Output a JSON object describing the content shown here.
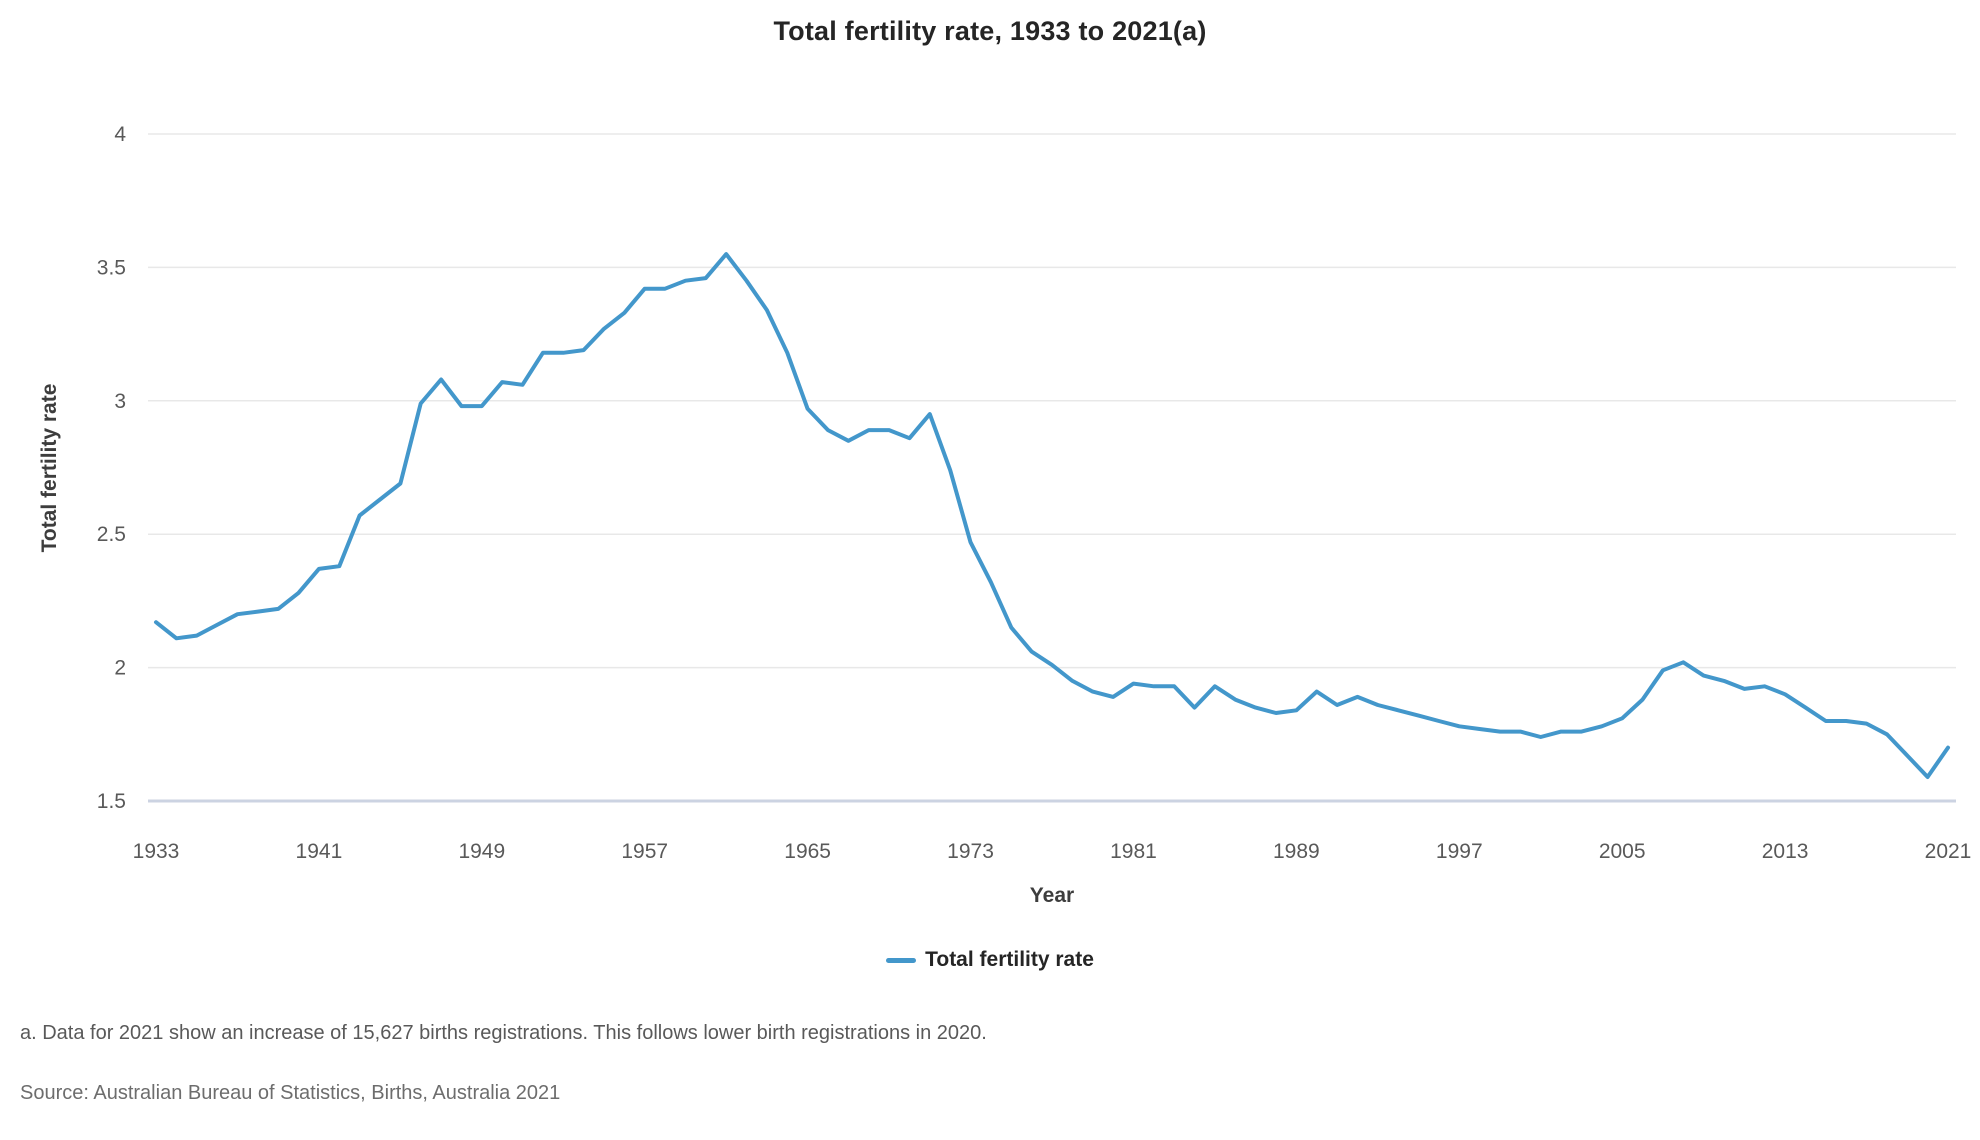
{
  "title": "Total fertility rate, 1933 to 2021(a)",
  "footnote": "a. Data for 2021 show an increase of 15,627 births registrations. This follows lower birth registrations in 2020.",
  "source": "Source: Australian Bureau of Statistics, Births, Australia 2021",
  "legend": {
    "label": "Total fertility rate"
  },
  "chart_data": {
    "type": "line",
    "title": "Total fertility rate, 1933 to 2021(a)",
    "xlabel": "Year",
    "ylabel": "Total fertility rate",
    "xlim": [
      1933,
      2021
    ],
    "ylim": [
      1.5,
      4
    ],
    "x_ticks": [
      1933,
      1941,
      1949,
      1957,
      1965,
      1973,
      1981,
      1989,
      1997,
      2005,
      2013,
      2021
    ],
    "y_ticks": [
      4,
      3.5,
      3,
      2.5,
      2,
      1.5
    ],
    "grid": "horizontal gridlines only, light gray; baseline at 1.5 pale blue-gray",
    "legend_position": "bottom center",
    "years": [
      1933,
      1934,
      1935,
      1936,
      1937,
      1938,
      1939,
      1940,
      1941,
      1942,
      1943,
      1944,
      1945,
      1946,
      1947,
      1948,
      1949,
      1950,
      1951,
      1952,
      1953,
      1954,
      1955,
      1956,
      1957,
      1958,
      1959,
      1960,
      1961,
      1962,
      1963,
      1964,
      1965,
      1966,
      1967,
      1968,
      1969,
      1970,
      1971,
      1972,
      1973,
      1974,
      1975,
      1976,
      1977,
      1978,
      1979,
      1980,
      1981,
      1982,
      1983,
      1984,
      1985,
      1986,
      1987,
      1988,
      1989,
      1990,
      1991,
      1992,
      1993,
      1994,
      1995,
      1996,
      1997,
      1998,
      1999,
      2000,
      2001,
      2002,
      2003,
      2004,
      2005,
      2006,
      2007,
      2008,
      2009,
      2010,
      2011,
      2012,
      2013,
      2014,
      2015,
      2016,
      2017,
      2018,
      2019,
      2020,
      2021
    ],
    "series": [
      {
        "name": "Total fertility rate",
        "values": [
          2.17,
          2.11,
          2.12,
          2.16,
          2.2,
          2.21,
          2.22,
          2.28,
          2.37,
          2.38,
          2.57,
          2.63,
          2.69,
          2.99,
          3.08,
          2.98,
          2.98,
          3.07,
          3.06,
          3.18,
          3.18,
          3.19,
          3.27,
          3.33,
          3.42,
          3.42,
          3.45,
          3.46,
          3.55,
          3.45,
          3.34,
          3.18,
          2.97,
          2.89,
          2.85,
          2.89,
          2.89,
          2.86,
          2.95,
          2.74,
          2.47,
          2.32,
          2.15,
          2.06,
          2.01,
          1.95,
          1.91,
          1.89,
          1.94,
          1.93,
          1.93,
          1.85,
          1.93,
          1.88,
          1.85,
          1.83,
          1.84,
          1.91,
          1.86,
          1.89,
          1.86,
          1.84,
          1.82,
          1.8,
          1.78,
          1.77,
          1.76,
          1.76,
          1.74,
          1.76,
          1.76,
          1.78,
          1.81,
          1.88,
          1.99,
          2.02,
          1.97,
          1.95,
          1.92,
          1.93,
          1.9,
          1.85,
          1.8,
          1.8,
          1.79,
          1.75,
          1.67,
          1.59,
          1.7
        ]
      }
    ],
    "colors": {
      "line": "#4397cb",
      "gridline": "#e8e8e8",
      "baseline": "#ccd3e2",
      "title_text": "#252525",
      "tick_text": "#595959"
    }
  }
}
